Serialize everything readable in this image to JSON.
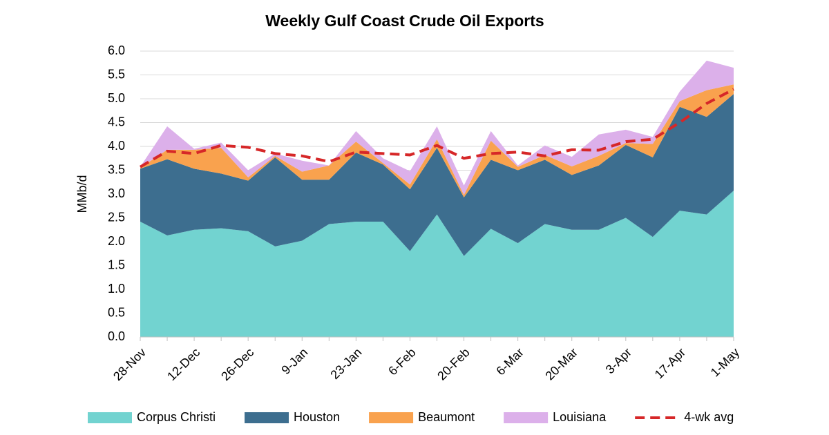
{
  "chart_data": {
    "type": "stacked-area",
    "title": "Weekly Gulf Coast Crude Oil Exports",
    "y_label": "MMb/d",
    "categories": [
      "28-Nov",
      null,
      "12-Dec",
      null,
      "26-Dec",
      null,
      "9-Jan",
      null,
      "23-Jan",
      null,
      "6-Feb",
      null,
      "20-Feb",
      null,
      "6-Mar",
      null,
      "20-Mar",
      null,
      "3-Apr",
      null,
      "17-Apr",
      null,
      "1-May"
    ],
    "series": [
      {
        "name": "Corpus Christi",
        "color": "#72d3d0",
        "type": "area",
        "values": [
          2.42,
          2.13,
          2.25,
          2.28,
          2.22,
          1.9,
          2.02,
          2.37,
          2.42,
          2.42,
          1.8,
          2.57,
          1.7,
          2.27,
          1.97,
          2.37,
          2.25,
          2.25,
          2.5,
          2.1,
          2.65,
          2.57,
          3.07
        ]
      },
      {
        "name": "Houston",
        "color": "#3d6e8f",
        "type": "area",
        "values": [
          1.11,
          1.6,
          1.28,
          1.15,
          1.06,
          1.87,
          1.28,
          0.93,
          1.45,
          1.2,
          1.3,
          1.4,
          1.23,
          1.45,
          1.53,
          1.35,
          1.15,
          1.35,
          1.53,
          1.67,
          2.18,
          2.05,
          2.03
        ]
      },
      {
        "name": "Beaumont",
        "color": "#f9a24e",
        "type": "area",
        "values": [
          0.02,
          0.2,
          0.4,
          0.54,
          0.07,
          0.03,
          0.17,
          0.3,
          0.23,
          0.03,
          0.1,
          0.18,
          0.05,
          0.4,
          0.07,
          0.1,
          0.18,
          0.2,
          0.04,
          0.28,
          0.12,
          0.56,
          0.2
        ]
      },
      {
        "name": "Louisiana",
        "color": "#dcb0ea",
        "type": "area",
        "values": [
          0.02,
          0.49,
          0.02,
          0.11,
          0.15,
          0.05,
          0.23,
          0,
          0.22,
          0.1,
          0.28,
          0.27,
          0.2,
          0.2,
          0.03,
          0.2,
          0.2,
          0.45,
          0.28,
          0.15,
          0.2,
          0.62,
          0.35
        ]
      },
      {
        "name": "4-wk avg",
        "color": "#d62728",
        "type": "line",
        "values": [
          3.57,
          3.9,
          3.85,
          4.02,
          3.98,
          3.85,
          3.8,
          3.68,
          3.88,
          3.85,
          3.82,
          4.02,
          3.75,
          3.85,
          3.88,
          3.8,
          3.93,
          3.92,
          4.1,
          4.15,
          4.5,
          4.9,
          5.2
        ]
      }
    ],
    "ylim": [
      0,
      6
    ],
    "yticks": [
      {
        "value": 0,
        "label": "0.0"
      },
      {
        "value": 0.5,
        "label": "0.5"
      },
      {
        "value": 1,
        "label": "1.0"
      },
      {
        "value": 1.5,
        "label": "1.5"
      },
      {
        "value": 2,
        "label": "2.0"
      },
      {
        "value": 2.5,
        "label": "2.5"
      },
      {
        "value": 3,
        "label": "3.0"
      },
      {
        "value": 3.5,
        "label": "3.5"
      },
      {
        "value": 4,
        "label": "4.0"
      },
      {
        "value": 4.5,
        "label": "4.5"
      },
      {
        "value": 5,
        "label": "5.0"
      },
      {
        "value": 5.5,
        "label": "5.5"
      },
      {
        "value": 6,
        "label": "6.0"
      }
    ],
    "grid": true
  }
}
